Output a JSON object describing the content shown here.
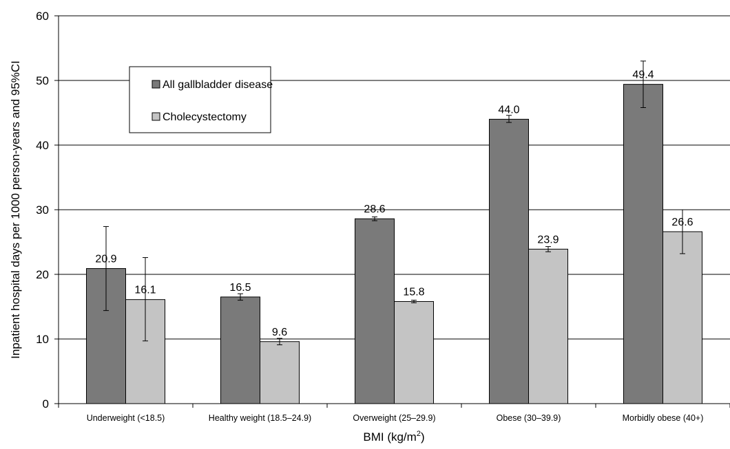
{
  "chart_data": {
    "type": "bar",
    "categories": [
      "Underweight (<18.5)",
      "Healthy weight (18.5–24.9)",
      "Overweight (25–29.9)",
      "Obese (30–39.9)",
      "Morbidly obese (40+)"
    ],
    "series": [
      {
        "name": "All gallbladder disease",
        "color": "#7a7a7a",
        "values": [
          20.9,
          16.5,
          28.6,
          44.0,
          49.4
        ],
        "labels": [
          "20.9",
          "16.5",
          "28.6",
          "44.0",
          "49.4"
        ],
        "ci_low": [
          14.4,
          16.0,
          28.3,
          43.5,
          45.8
        ],
        "ci_high": [
          27.4,
          17.0,
          28.9,
          44.6,
          53.0
        ]
      },
      {
        "name": "Cholecystectomy",
        "color": "#c4c4c4",
        "values": [
          16.1,
          9.6,
          15.8,
          23.9,
          26.6
        ],
        "labels": [
          "16.1",
          "9.6",
          "15.8",
          "23.9",
          "26.6"
        ],
        "ci_low": [
          9.7,
          9.1,
          15.6,
          23.5,
          23.2
        ],
        "ci_high": [
          22.6,
          10.1,
          16.0,
          24.3,
          30.0
        ]
      }
    ],
    "title": "",
    "xlabel": "BMI (kg/m",
    "xlabel_superscript": "2",
    "xlabel_suffix": ")",
    "ylabel": "Inpatient hospital days per 1000 person-years and 95%CI",
    "ylim": [
      0,
      60
    ],
    "yticks": [
      "0",
      "10",
      "20",
      "30",
      "40",
      "50",
      "60"
    ],
    "ytick_values": [
      0,
      10,
      20,
      30,
      40,
      50,
      60
    ],
    "grid": true,
    "legend_position": "top-left",
    "error_bars": "95% CI"
  }
}
